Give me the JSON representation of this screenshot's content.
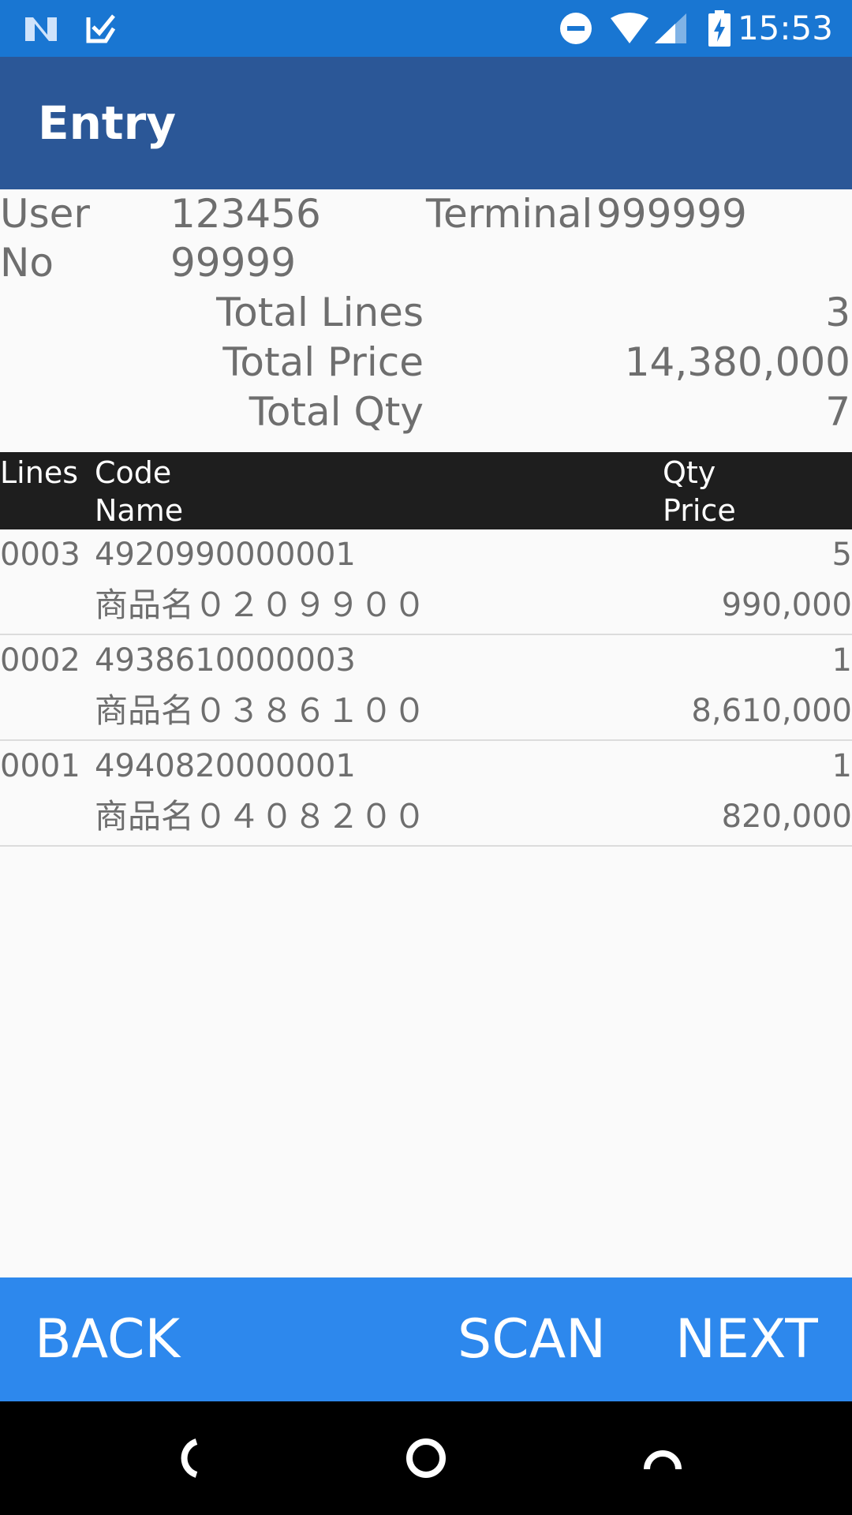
{
  "status_bar": {
    "time": "15:53",
    "left_icons": [
      "n-logo-icon",
      "checkbox-icon"
    ],
    "right_icons": [
      "dnd-icon",
      "wifi-icon",
      "signal-icon",
      "battery-charging-icon"
    ]
  },
  "app_bar": {
    "title": "Entry"
  },
  "summary": {
    "user_label": "User",
    "user_value": "123456",
    "terminal_label": "Terminal",
    "terminal_value": "999999",
    "no_label": "No",
    "no_value": "99999",
    "total_lines_label": "Total Lines",
    "total_lines_value": "3",
    "total_price_label": "Total Price",
    "total_price_value": "14,380,000",
    "total_qty_label": "Total Qty",
    "total_qty_value": "7"
  },
  "table_header": {
    "lines": "Lines",
    "code": "Code",
    "name": "Name",
    "qty": "Qty",
    "price": "Price"
  },
  "rows": [
    {
      "line": "0003",
      "code": "4920990000001",
      "name": "商品名０２０９９００",
      "qty": "5",
      "price": "990,000"
    },
    {
      "line": "0002",
      "code": "4938610000003",
      "name": "商品名０３８６１００",
      "qty": "1",
      "price": "8,610,000"
    },
    {
      "line": "0001",
      "code": "4940820000001",
      "name": "商品名０４０８２００",
      "qty": "1",
      "price": "820,000"
    }
  ],
  "bottom_bar": {
    "back": "BACK",
    "scan": "SCAN",
    "next": "NEXT"
  },
  "colors": {
    "status_bar": "#1976d2",
    "app_bar": "#2b5797",
    "header_band": "#1e1e1e",
    "bottom_bar": "#2d88ed",
    "background": "#fafafa"
  }
}
